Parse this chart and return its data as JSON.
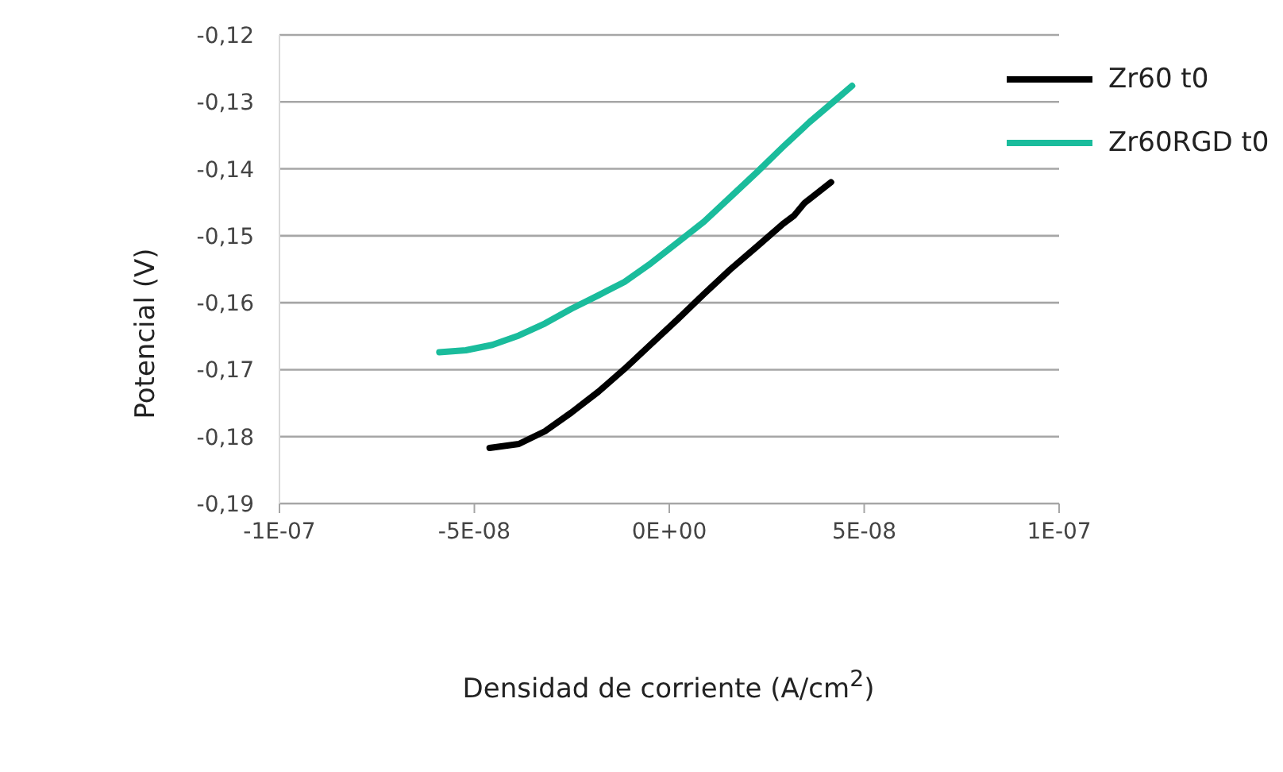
{
  "chart_data": {
    "type": "line",
    "xlabel": "Densidad de corriente (A/cm$^{2}$)",
    "ylabel": "Potencial (V)",
    "xlim": [
      -1e-07,
      1e-07
    ],
    "xticks": [
      {
        "value": -1e-07,
        "label": "-1E-07"
      },
      {
        "value": -5e-08,
        "label": "-5E-08"
      },
      {
        "value": 0,
        "label": "0E+00"
      },
      {
        "value": 5e-08,
        "label": "5E-08"
      },
      {
        "value": 1e-07,
        "label": "1E-07"
      }
    ],
    "ylim": [
      -0.19,
      -0.12
    ],
    "yticks": [
      {
        "value": -0.19,
        "label": "-0,19"
      },
      {
        "value": -0.18,
        "label": "-0,18"
      },
      {
        "value": -0.17,
        "label": "-0,17"
      },
      {
        "value": -0.16,
        "label": "-0,16"
      },
      {
        "value": -0.15,
        "label": "-0,15"
      },
      {
        "value": -0.14,
        "label": "-0,14"
      },
      {
        "value": -0.13,
        "label": "-0,13"
      },
      {
        "value": -0.12,
        "label": "-0,12"
      }
    ],
    "grid": "y",
    "legend": "top right",
    "marker": "none",
    "line_style": "solid",
    "series": [
      {
        "name": "Zr60 t0",
        "color": "#000000",
        "x": [
          -4.61e-08,
          -3.86e-08,
          -3.19e-08,
          -2.51e-08,
          -1.82e-08,
          -1.15e-08,
          -4.7e-09,
          2.1e-09,
          8.9e-09,
          1.57e-08,
          2.25e-08,
          2.92e-08,
          3.2e-08,
          3.47e-08,
          4.15e-08
        ],
        "values": [
          -0.1817,
          -0.1811,
          -0.1792,
          -0.1764,
          -0.1733,
          -0.1699,
          -0.1662,
          -0.1625,
          -0.1587,
          -0.155,
          -0.1516,
          -0.1482,
          -0.147,
          -0.1451,
          -0.142
        ]
      },
      {
        "name": "Zr60RGD t0",
        "color": "#1abc9c",
        "x": [
          -5.9e-08,
          -5.22e-08,
          -4.54e-08,
          -3.86e-08,
          -3.19e-08,
          -2.51e-08,
          -1.82e-08,
          -1.15e-08,
          -4.7e-09,
          2.1e-09,
          8.9e-09,
          1.57e-08,
          2.25e-08,
          2.92e-08,
          3.6e-08,
          4.29e-08,
          4.69e-08
        ],
        "values": [
          -0.1674,
          -0.1671,
          -0.1663,
          -0.1649,
          -0.1631,
          -0.1609,
          -0.1589,
          -0.1569,
          -0.1541,
          -0.151,
          -0.1479,
          -0.1442,
          -0.1405,
          -0.1367,
          -0.133,
          -0.1296,
          -0.1276
        ]
      }
    ]
  }
}
